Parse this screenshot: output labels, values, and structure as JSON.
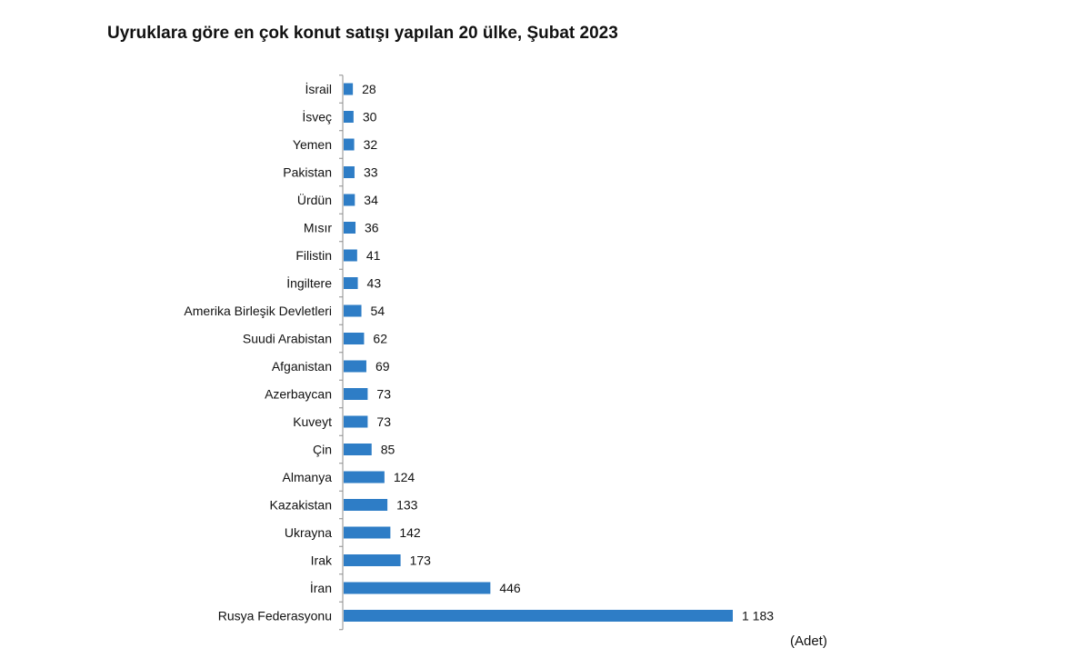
{
  "chart_data": {
    "type": "bar",
    "orientation": "horizontal",
    "title": "Uyruklara göre en çok konut satışı yapılan 20 ülke, Şubat 2023",
    "unit_label": "(Adet)",
    "bar_color": "#2e7dc6",
    "categories": [
      "İsrail",
      "İsveç",
      "Yemen",
      "Pakistan",
      "Ürdün",
      "Mısır",
      "Filistin",
      "İngiltere",
      "Amerika Birleşik Devletleri",
      "Suudi Arabistan",
      "Afganistan",
      "Azerbaycan",
      "Kuveyt",
      "Çin",
      "Almanya",
      "Kazakistan",
      "Ukrayna",
      "Irak",
      "İran",
      "Rusya Federasyonu"
    ],
    "values": [
      28,
      30,
      32,
      33,
      34,
      36,
      41,
      43,
      54,
      62,
      69,
      73,
      73,
      85,
      124,
      133,
      142,
      173,
      446,
      1183
    ],
    "value_labels": [
      "28",
      "30",
      "32",
      "33",
      "34",
      "36",
      "41",
      "43",
      "54",
      "62",
      "69",
      "73",
      "73",
      "85",
      "124",
      "133",
      "142",
      "173",
      "446",
      "1 183"
    ],
    "xlim": [
      0,
      1183
    ],
    "grid": false,
    "legend": "none"
  }
}
